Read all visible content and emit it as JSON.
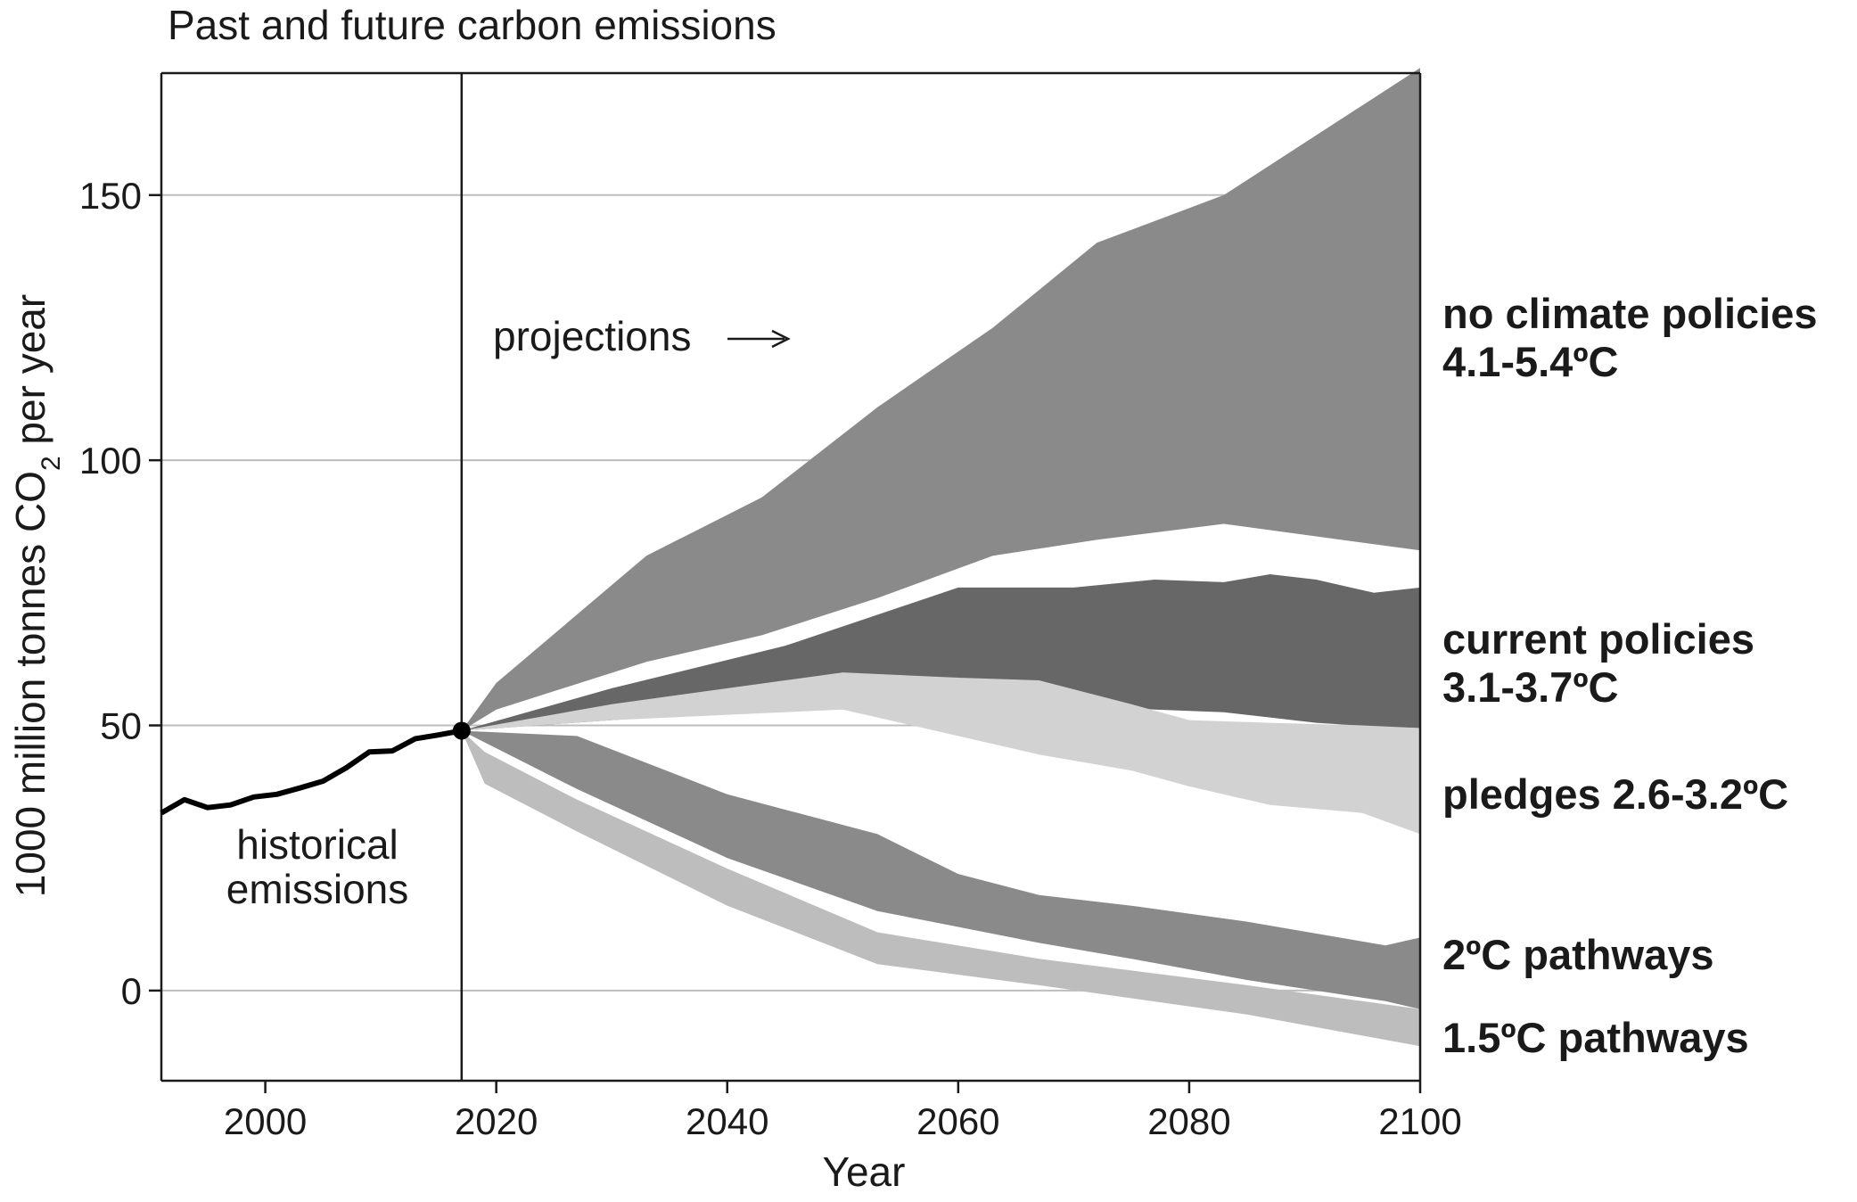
{
  "chart_data": {
    "type": "area",
    "title": "Past and future carbon emissions",
    "xlabel": "Year",
    "ylabel_main": "1000 million tonnes CO",
    "ylabel_sub": "2",
    "ylabel_tail": " per year",
    "xlim": [
      1991,
      2100
    ],
    "ylim": [
      -17,
      173
    ],
    "xticks": [
      2000,
      2020,
      2040,
      2060,
      2080,
      2100
    ],
    "yticks": [
      0,
      50,
      100,
      150
    ],
    "grid": "horizontal",
    "projection_start": 2017,
    "annotations": {
      "projections": "projections",
      "historical_line1": "historical",
      "historical_line2": "emissions"
    },
    "historical": {
      "x": [
        1991,
        1993,
        1995,
        1997,
        1999,
        2001,
        2003,
        2005,
        2007,
        2009,
        2011,
        2013,
        2015,
        2017
      ],
      "y": [
        33.5,
        36,
        34.5,
        35,
        36.5,
        37,
        38.2,
        39.5,
        42,
        45,
        45.2,
        47.5,
        48.2,
        49
      ]
    },
    "bands": [
      {
        "name": "no climate policies",
        "range_label": "4.1-5.4ºC",
        "color": "#8a8a8a",
        "x": [
          2017,
          2020,
          2033,
          2043,
          2053,
          2063,
          2072,
          2083,
          2100
        ],
        "upper": [
          49,
          58,
          82,
          93,
          110,
          125,
          141,
          150,
          174
        ],
        "lower": [
          49,
          53,
          62,
          67,
          74,
          82,
          85,
          88,
          83
        ]
      },
      {
        "name": "current policies",
        "range_label": "3.1-3.7ºC",
        "color": "#676767",
        "x": [
          2017,
          2030,
          2045,
          2060,
          2070,
          2077,
          2083,
          2087,
          2091,
          2096,
          2100
        ],
        "upper": [
          49,
          57,
          65,
          76,
          76,
          77.5,
          77,
          78.5,
          77.5,
          75,
          76
        ],
        "lower": [
          49,
          51,
          53,
          55,
          54,
          53,
          52.5,
          51.5,
          50.5,
          49.8,
          49.5
        ]
      },
      {
        "name": "pledges",
        "range_label": "2.6-3.2ºC",
        "color": "#d2d2d2",
        "x": [
          2017,
          2030,
          2050,
          2060,
          2067,
          2075,
          2080,
          2087,
          2095,
          2100
        ],
        "upper": [
          49,
          54,
          60,
          59,
          58.5,
          54,
          51,
          50.5,
          50,
          49.5
        ],
        "lower": [
          49,
          51,
          53,
          48,
          44.5,
          41.5,
          38.5,
          35,
          33.5,
          29.5
        ]
      },
      {
        "name": "2ºC pathways",
        "range_label": "",
        "color": "#8a8a8a",
        "x": [
          2017,
          2027,
          2040,
          2053,
          2060,
          2067,
          2075,
          2085,
          2097,
          2100
        ],
        "upper": [
          49,
          48,
          37,
          29.5,
          22,
          18,
          16,
          13,
          8.5,
          10
        ],
        "lower": [
          49,
          38,
          25,
          15,
          12,
          9,
          6,
          2,
          -2,
          -3.5
        ]
      },
      {
        "name": "1.5ºC pathways",
        "range_label": "",
        "color": "#bdbdbd",
        "x": [
          2017,
          2019,
          2027,
          2040,
          2053,
          2067,
          2085,
          2100
        ],
        "upper": [
          49,
          45,
          36,
          23,
          11,
          6,
          1,
          -3.5
        ],
        "lower": [
          49,
          39,
          30,
          16,
          5,
          1,
          -4.5,
          -10.5
        ]
      }
    ],
    "labels": {
      "no_policies_1": "no climate policies",
      "no_policies_2": "4.1-5.4ºC",
      "current_1": "current policies",
      "current_2": "3.1-3.7ºC",
      "pledges": "pledges 2.6-3.2ºC",
      "two_deg": "2ºC pathways",
      "one_five_deg": "1.5ºC pathways"
    }
  }
}
